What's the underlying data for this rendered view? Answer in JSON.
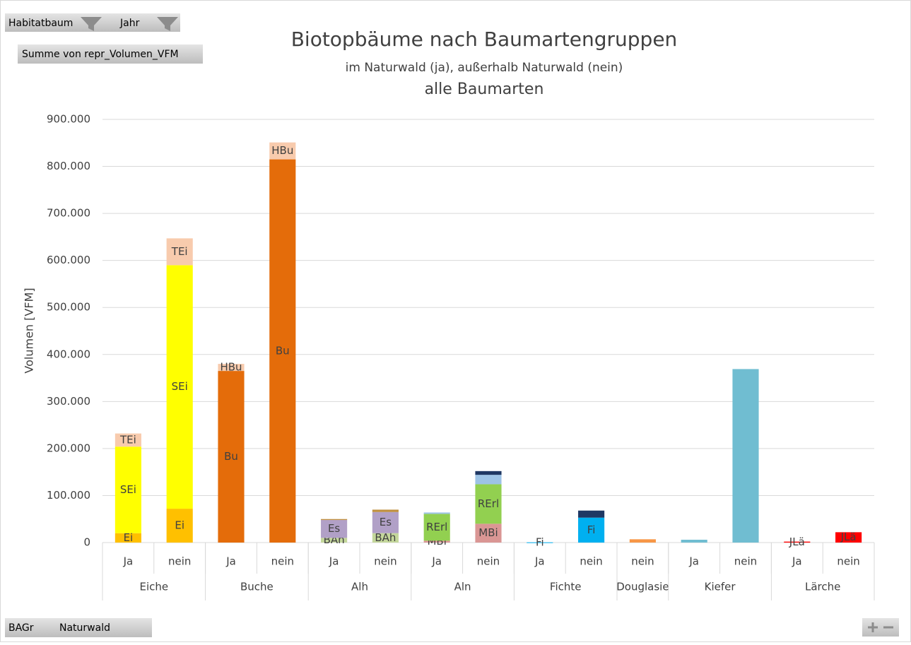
{
  "ui": {
    "filter_fields": [
      "Habitatbaum",
      "Jahr"
    ],
    "value_field": "Summe von repr_Volumen_VFM",
    "axis_fields": [
      "BAGr",
      "Naturwald"
    ]
  },
  "chart_data": {
    "type": "stacked_bar",
    "title": "Biotopbäume nach Baumartengruppen",
    "subtitle": "im Naturwald (ja), außerhalb Naturwald (nein)",
    "subtitle2": "alle Baumarten",
    "y_label": "Volumen [VFM]",
    "categories": [
      [
        "Eiche",
        "Ja"
      ],
      [
        "Eiche",
        "nein"
      ],
      [
        "Buche",
        "Ja"
      ],
      [
        "Buche",
        "nein"
      ],
      [
        "Alh",
        "Ja"
      ],
      [
        "Alh",
        "nein"
      ],
      [
        "Aln",
        "Ja"
      ],
      [
        "Aln",
        "nein"
      ],
      [
        "Fichte",
        "Ja"
      ],
      [
        "Fichte",
        "nein"
      ],
      [
        "Douglasie",
        "nein"
      ],
      [
        "Kiefer",
        "Ja"
      ],
      [
        "Kiefer",
        "nein"
      ],
      [
        "Lärche",
        "Ja"
      ],
      [
        "Lärche",
        "nein"
      ]
    ],
    "ylim": [
      0,
      900000
    ],
    "yticks": [
      0,
      {
        "value": 100000,
        "label": "100.000"
      },
      {
        "value": 200000,
        "label": "200.000"
      },
      {
        "value": 300000,
        "label": "300.000"
      },
      {
        "value": 400000,
        "label": "400.000"
      },
      {
        "value": 500000,
        "label": "500.000"
      },
      {
        "value": 600000,
        "label": "600.000"
      },
      {
        "value": 700000,
        "label": "700.000"
      },
      {
        "value": 800000,
        "label": "800.000"
      },
      {
        "value": 900000,
        "label": "900.000"
      }
    ],
    "grid": true,
    "series": [
      {
        "name": "Ei",
        "color": "#ffc000",
        "values": [
          20000,
          72000,
          null,
          null,
          null,
          null,
          null,
          null,
          null,
          null,
          null,
          null,
          null,
          null,
          null
        ]
      },
      {
        "name": "SEi",
        "color": "#ffff00",
        "values": [
          184000,
          518000,
          null,
          null,
          null,
          null,
          null,
          null,
          null,
          null,
          null,
          null,
          null,
          null,
          null
        ]
      },
      {
        "name": "TEi",
        "color": "#f8cbad",
        "values": [
          28000,
          57000,
          null,
          null,
          null,
          null,
          null,
          null,
          null,
          null,
          null,
          null,
          null,
          null,
          null
        ]
      },
      {
        "name": "Bu",
        "color": "#e46c0a",
        "values": [
          null,
          null,
          365000,
          815000,
          null,
          null,
          null,
          null,
          null,
          null,
          null,
          null,
          null,
          null,
          null
        ]
      },
      {
        "name": "HBu",
        "color": "#f8cbad",
        "values": [
          null,
          null,
          15000,
          36000,
          null,
          null,
          null,
          null,
          null,
          null,
          null,
          null,
          null,
          null,
          null
        ]
      },
      {
        "name": "BAh",
        "color": "#c4d79b",
        "values": [
          null,
          null,
          null,
          null,
          10000,
          20000,
          null,
          null,
          null,
          null,
          null,
          null,
          null,
          null,
          null
        ]
      },
      {
        "name": "Es",
        "color": "#b1a0c7",
        "values": [
          null,
          null,
          null,
          null,
          38000,
          45000,
          null,
          null,
          null,
          null,
          null,
          null,
          null,
          null,
          null
        ]
      },
      {
        "color": "#c09040",
        "values": [
          null,
          null,
          null,
          null,
          2000,
          5000,
          null,
          null,
          null,
          null,
          null,
          null,
          null,
          null,
          null
        ]
      },
      {
        "name": "MBi",
        "color": "#da9694",
        "values": [
          null,
          null,
          null,
          null,
          null,
          null,
          4000,
          40000,
          null,
          null,
          null,
          null,
          null,
          null,
          null
        ]
      },
      {
        "name": "RErl",
        "color": "#92d050",
        "values": [
          null,
          null,
          null,
          null,
          null,
          null,
          57000,
          84000,
          null,
          null,
          null,
          null,
          null,
          null,
          null
        ]
      },
      {
        "color": "#9dc3e6",
        "values": [
          null,
          null,
          null,
          null,
          null,
          null,
          3000,
          20000,
          null,
          null,
          null,
          null,
          null,
          null,
          null
        ]
      },
      {
        "name": "Fi",
        "color": "#00b0f0",
        "values": [
          null,
          null,
          null,
          null,
          null,
          null,
          null,
          null,
          500,
          53000,
          null,
          null,
          null,
          null,
          null
        ]
      },
      {
        "color": "#1f3864",
        "values": [
          null,
          null,
          null,
          null,
          null,
          null,
          null,
          8000,
          null,
          15000,
          null,
          null,
          null,
          null,
          null
        ]
      },
      {
        "color": "#f79646",
        "values": [
          null,
          null,
          null,
          null,
          null,
          null,
          null,
          null,
          null,
          null,
          7000,
          null,
          null,
          null,
          null
        ]
      },
      {
        "color": "#70bdd1",
        "values": [
          null,
          null,
          null,
          null,
          null,
          null,
          null,
          null,
          null,
          null,
          null,
          6000,
          369000,
          null,
          null
        ]
      },
      {
        "name": "JLä",
        "color": "#ff0000",
        "values": [
          null,
          null,
          null,
          null,
          null,
          null,
          null,
          null,
          null,
          null,
          null,
          null,
          null,
          2000,
          22000
        ]
      }
    ]
  }
}
